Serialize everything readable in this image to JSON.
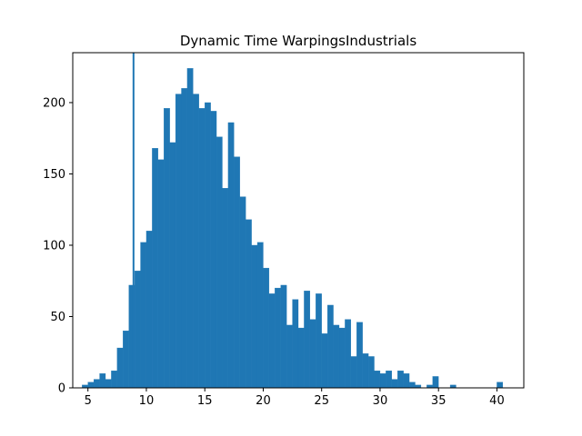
{
  "chart_data": {
    "type": "bar",
    "title": "Dynamic Time WarpingsIndustrials",
    "xlabel": "",
    "ylabel": "",
    "xlim": [
      3.7,
      42.3
    ],
    "ylim": [
      0,
      235
    ],
    "xticks": [
      5,
      10,
      15,
      20,
      25,
      30,
      35,
      40
    ],
    "yticks": [
      0,
      50,
      100,
      150,
      200
    ],
    "bar_color": "#1f77b4",
    "bin_start": 4.5,
    "bin_width": 0.5,
    "values": [
      2,
      4,
      6,
      10,
      6,
      12,
      28,
      40,
      72,
      82,
      102,
      110,
      168,
      160,
      196,
      172,
      206,
      210,
      224,
      206,
      196,
      200,
      194,
      176,
      140,
      186,
      162,
      134,
      118,
      100,
      102,
      84,
      66,
      70,
      72,
      44,
      62,
      42,
      68,
      48,
      66,
      38,
      58,
      44,
      42,
      48,
      22,
      46,
      24,
      22,
      12,
      10,
      12,
      6,
      12,
      10,
      4,
      2,
      0,
      2,
      8,
      0,
      0,
      2,
      0,
      0,
      0,
      0,
      0,
      0,
      0,
      4
    ],
    "vline": {
      "x": 8.9,
      "top": 235,
      "color": "#1f77b4"
    }
  }
}
